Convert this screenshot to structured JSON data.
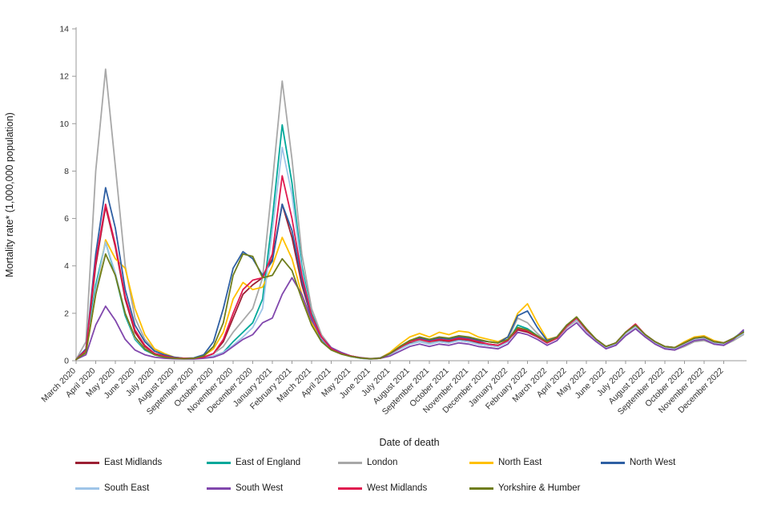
{
  "chart": {
    "y_axis": {
      "label": "Mortality rate* (1,000,000 population)",
      "min": 0,
      "max": 14,
      "tick_step": 2,
      "ticks": [
        0,
        2,
        4,
        6,
        8,
        10,
        12,
        14
      ]
    },
    "x_axis": {
      "label": "Date of death",
      "tick_labels": [
        "March 2020",
        "April 2020",
        "May 2020",
        "June 2020",
        "July 2020",
        "August 2020",
        "September 2020",
        "October 2020",
        "November 2020",
        "December 2020",
        "January 2021",
        "February 2021",
        "March 2021",
        "April 2021",
        "May 2021",
        "June 2021",
        "July 2021",
        "August 2021",
        "September 2021",
        "October 2021",
        "November 2021",
        "December 2021",
        "January 2022",
        "February 2022",
        "March 2022",
        "April 2022",
        "May 2022",
        "June 2022",
        "July 2022",
        "August 2022",
        "September 2022",
        "October 2022",
        "November 2022",
        "December 2022"
      ]
    },
    "legend_row1": [
      "East Midlands",
      "East of England",
      "London",
      "North East",
      "North West"
    ],
    "legend_row2": [
      "South East",
      "South West",
      "West Midlands",
      "Yorkshire & Humber"
    ]
  },
  "chart_data": {
    "type": "line",
    "title": "",
    "xlabel": "Date of death",
    "ylabel": "Mortality rate* (1,000,000 population)",
    "x_unit": "months since 1 March 2020 (fractional, half-month sampling)",
    "xlim": [
      0,
      34
    ],
    "ylim": [
      0,
      14
    ],
    "grid": false,
    "legend_position": "bottom",
    "x": [
      0,
      0.5,
      1,
      1.5,
      2,
      2.5,
      3,
      3.5,
      4,
      4.5,
      5,
      5.5,
      6,
      6.5,
      7,
      7.5,
      8,
      8.5,
      9,
      9.5,
      10,
      10.5,
      11,
      11.5,
      12,
      12.5,
      13,
      13.5,
      14,
      14.5,
      15,
      15.5,
      16,
      16.5,
      17,
      17.5,
      18,
      18.5,
      19,
      19.5,
      20,
      20.5,
      21,
      21.5,
      22,
      22.5,
      23,
      23.5,
      24,
      24.5,
      25,
      25.5,
      26,
      26.5,
      27,
      27.5,
      28,
      28.5,
      29,
      29.5,
      30,
      30.5,
      31,
      31.5,
      32,
      32.5,
      33,
      33.5,
      34
    ],
    "series": [
      {
        "name": "East Midlands",
        "color": "#9c1f33",
        "values": [
          0.05,
          0.4,
          4.0,
          6.5,
          4.8,
          2.6,
          1.2,
          0.6,
          0.3,
          0.2,
          0.12,
          0.1,
          0.1,
          0.15,
          0.3,
          0.8,
          1.8,
          2.8,
          3.2,
          3.5,
          4.3,
          6.6,
          5.2,
          3.2,
          1.8,
          0.9,
          0.5,
          0.3,
          0.2,
          0.12,
          0.08,
          0.1,
          0.3,
          0.55,
          0.75,
          0.85,
          0.75,
          0.85,
          0.8,
          0.9,
          0.85,
          0.75,
          0.7,
          0.65,
          0.85,
          1.3,
          1.2,
          1.0,
          0.75,
          0.95,
          1.45,
          1.75,
          1.25,
          0.85,
          0.55,
          0.7,
          1.15,
          1.45,
          1.05,
          0.75,
          0.55,
          0.5,
          0.7,
          0.9,
          0.95,
          0.75,
          0.7,
          0.9,
          1.2
        ]
      },
      {
        "name": "East of England",
        "color": "#00a89a",
        "values": [
          0.05,
          0.5,
          3.2,
          5.0,
          3.6,
          1.9,
          0.9,
          0.45,
          0.25,
          0.15,
          0.1,
          0.08,
          0.08,
          0.12,
          0.2,
          0.35,
          0.8,
          1.2,
          1.6,
          2.6,
          6.0,
          9.95,
          7.5,
          4.0,
          2.0,
          1.0,
          0.5,
          0.3,
          0.18,
          0.1,
          0.07,
          0.1,
          0.25,
          0.5,
          0.7,
          0.8,
          0.7,
          0.8,
          0.75,
          0.85,
          0.8,
          0.7,
          0.65,
          0.6,
          0.8,
          1.5,
          1.35,
          1.05,
          0.8,
          1.0,
          1.5,
          1.8,
          1.3,
          0.9,
          0.6,
          0.75,
          1.2,
          1.5,
          1.1,
          0.8,
          0.6,
          0.55,
          0.75,
          0.95,
          1.0,
          0.8,
          0.75,
          0.95,
          1.25
        ]
      },
      {
        "name": "London",
        "color": "#a8a8a8",
        "values": [
          0.05,
          0.8,
          8.0,
          12.3,
          8.2,
          4.0,
          1.8,
          0.9,
          0.45,
          0.25,
          0.15,
          0.1,
          0.1,
          0.15,
          0.3,
          0.6,
          1.2,
          1.7,
          2.2,
          3.5,
          7.5,
          11.8,
          8.5,
          4.5,
          2.2,
          1.1,
          0.55,
          0.35,
          0.2,
          0.13,
          0.09,
          0.12,
          0.3,
          0.6,
          0.8,
          0.85,
          0.75,
          0.8,
          0.75,
          0.85,
          0.8,
          0.7,
          0.65,
          0.6,
          0.9,
          1.8,
          1.6,
          1.15,
          0.8,
          0.95,
          1.4,
          1.7,
          1.25,
          0.85,
          0.55,
          0.65,
          1.05,
          1.35,
          1.0,
          0.7,
          0.5,
          0.45,
          0.6,
          0.8,
          0.85,
          0.7,
          0.65,
          0.85,
          1.1
        ]
      },
      {
        "name": "North East",
        "color": "#ffc000",
        "values": [
          0.05,
          0.3,
          2.8,
          5.1,
          4.3,
          3.9,
          2.2,
          1.1,
          0.5,
          0.3,
          0.15,
          0.1,
          0.1,
          0.2,
          0.5,
          1.2,
          2.6,
          3.3,
          3.0,
          3.1,
          4.0,
          5.2,
          4.3,
          2.8,
          1.6,
          0.9,
          0.5,
          0.3,
          0.2,
          0.12,
          0.08,
          0.12,
          0.35,
          0.7,
          1.0,
          1.15,
          1.0,
          1.2,
          1.1,
          1.25,
          1.2,
          1.0,
          0.9,
          0.8,
          1.0,
          2.0,
          2.4,
          1.6,
          0.9,
          1.0,
          1.5,
          1.8,
          1.3,
          0.9,
          0.6,
          0.75,
          1.2,
          1.5,
          1.1,
          0.8,
          0.6,
          0.55,
          0.8,
          1.0,
          1.05,
          0.85,
          0.75,
          0.95,
          1.2
        ]
      },
      {
        "name": "North West",
        "color": "#2e5fa3",
        "values": [
          0.05,
          0.5,
          4.5,
          7.3,
          5.6,
          3.0,
          1.5,
          0.8,
          0.4,
          0.25,
          0.15,
          0.1,
          0.12,
          0.25,
          0.8,
          2.2,
          3.9,
          4.6,
          4.3,
          3.6,
          4.2,
          6.6,
          5.5,
          3.4,
          1.8,
          0.9,
          0.5,
          0.3,
          0.2,
          0.12,
          0.08,
          0.12,
          0.3,
          0.6,
          0.85,
          0.95,
          0.85,
          0.95,
          0.9,
          1.0,
          0.95,
          0.85,
          0.8,
          0.75,
          1.0,
          1.9,
          2.1,
          1.4,
          0.85,
          1.0,
          1.5,
          1.8,
          1.3,
          0.9,
          0.6,
          0.75,
          1.2,
          1.5,
          1.1,
          0.8,
          0.6,
          0.55,
          0.75,
          0.95,
          1.0,
          0.8,
          0.75,
          0.95,
          1.2
        ]
      },
      {
        "name": "South East",
        "color": "#9fc5e8",
        "values": [
          0.05,
          0.4,
          3.0,
          5.0,
          3.7,
          2.0,
          0.95,
          0.5,
          0.25,
          0.15,
          0.1,
          0.08,
          0.08,
          0.12,
          0.2,
          0.35,
          0.65,
          1.0,
          1.4,
          2.2,
          5.5,
          9.0,
          7.0,
          3.8,
          1.9,
          0.95,
          0.5,
          0.3,
          0.18,
          0.1,
          0.07,
          0.1,
          0.25,
          0.5,
          0.7,
          0.8,
          0.7,
          0.8,
          0.75,
          0.85,
          0.8,
          0.7,
          0.65,
          0.6,
          0.8,
          1.4,
          1.3,
          1.0,
          0.75,
          0.95,
          1.45,
          1.75,
          1.25,
          0.85,
          0.55,
          0.7,
          1.15,
          1.45,
          1.05,
          0.75,
          0.55,
          0.5,
          0.7,
          0.9,
          0.95,
          0.75,
          0.7,
          0.9,
          1.15
        ]
      },
      {
        "name": "South West",
        "color": "#8147ad",
        "values": [
          0.05,
          0.25,
          1.5,
          2.3,
          1.7,
          0.9,
          0.45,
          0.25,
          0.15,
          0.1,
          0.08,
          0.07,
          0.07,
          0.1,
          0.15,
          0.3,
          0.6,
          0.9,
          1.1,
          1.6,
          1.8,
          2.8,
          3.5,
          2.8,
          1.7,
          1.0,
          0.55,
          0.35,
          0.2,
          0.13,
          0.08,
          0.1,
          0.2,
          0.4,
          0.6,
          0.7,
          0.6,
          0.7,
          0.65,
          0.75,
          0.7,
          0.6,
          0.55,
          0.5,
          0.7,
          1.2,
          1.1,
          0.9,
          0.65,
          0.85,
          1.3,
          1.6,
          1.15,
          0.8,
          0.5,
          0.65,
          1.05,
          1.35,
          1.0,
          0.7,
          0.5,
          0.45,
          0.65,
          0.85,
          0.9,
          0.7,
          0.65,
          0.9,
          1.3
        ]
      },
      {
        "name": "West Midlands",
        "color": "#e0194f",
        "values": [
          0.05,
          0.45,
          4.2,
          6.6,
          4.9,
          2.7,
          1.3,
          0.65,
          0.3,
          0.2,
          0.12,
          0.1,
          0.1,
          0.15,
          0.3,
          0.9,
          2.0,
          3.0,
          3.4,
          3.5,
          4.5,
          7.8,
          6.0,
          3.6,
          1.9,
          1.0,
          0.5,
          0.3,
          0.2,
          0.12,
          0.08,
          0.1,
          0.3,
          0.55,
          0.8,
          0.9,
          0.8,
          0.9,
          0.85,
          0.95,
          0.9,
          0.8,
          0.7,
          0.65,
          0.85,
          1.35,
          1.25,
          1.0,
          0.75,
          0.95,
          1.45,
          1.8,
          1.3,
          0.9,
          0.6,
          0.75,
          1.2,
          1.55,
          1.1,
          0.8,
          0.6,
          0.55,
          0.75,
          0.95,
          1.0,
          0.8,
          0.75,
          0.95,
          1.2
        ]
      },
      {
        "name": "Yorkshire & Humber",
        "color": "#6f7d1c",
        "values": [
          0.05,
          0.35,
          2.8,
          4.5,
          3.6,
          2.0,
          1.0,
          0.5,
          0.25,
          0.15,
          0.1,
          0.08,
          0.1,
          0.2,
          0.6,
          1.6,
          3.6,
          4.5,
          4.4,
          3.5,
          3.6,
          4.3,
          3.8,
          2.6,
          1.5,
          0.8,
          0.45,
          0.28,
          0.18,
          0.11,
          0.08,
          0.1,
          0.3,
          0.6,
          0.85,
          1.0,
          0.9,
          1.0,
          0.95,
          1.05,
          1.0,
          0.9,
          0.8,
          0.75,
          0.9,
          1.4,
          1.3,
          1.05,
          0.8,
          1.0,
          1.5,
          1.85,
          1.35,
          0.9,
          0.6,
          0.75,
          1.2,
          1.5,
          1.1,
          0.8,
          0.6,
          0.55,
          0.75,
          0.95,
          1.0,
          0.8,
          0.75,
          0.95,
          1.2
        ]
      }
    ]
  }
}
